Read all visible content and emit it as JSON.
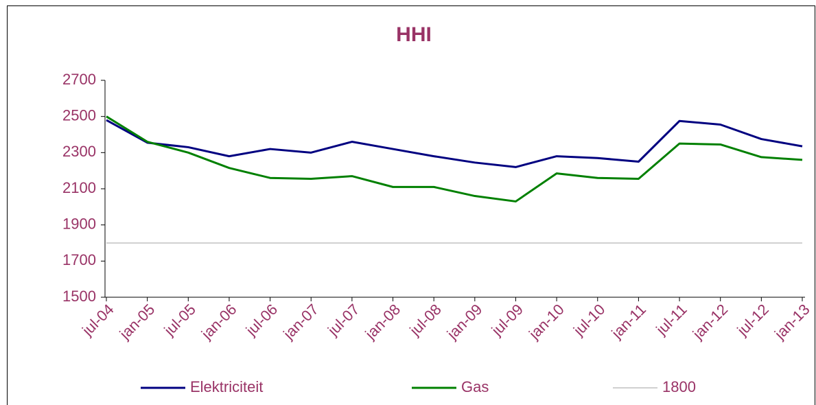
{
  "chart_data": {
    "type": "line",
    "title": "HHI",
    "categories": [
      "jul-04",
      "jan-05",
      "jul-05",
      "jan-06",
      "jul-06",
      "jan-07",
      "jul-07",
      "jan-08",
      "jul-08",
      "jan-09",
      "jul-09",
      "jan-10",
      "jul-10",
      "jan-11",
      "jul-11",
      "jan-12",
      "jul-12",
      "jan-13"
    ],
    "series": [
      {
        "name": "Elektriciteit",
        "color": "#000080",
        "values": [
          2480,
          2355,
          2330,
          2280,
          2320,
          2300,
          2360,
          2320,
          2280,
          2245,
          2220,
          2280,
          2270,
          2250,
          2475,
          2455,
          2375,
          2335
        ]
      },
      {
        "name": "Gas",
        "color": "#008000",
        "values": [
          2500,
          2360,
          2300,
          2215,
          2160,
          2155,
          2170,
          2110,
          2110,
          2060,
          2030,
          2185,
          2160,
          2155,
          2350,
          2345,
          2275,
          2260
        ]
      },
      {
        "name": "1800",
        "color": "#c0c0c0",
        "values": [
          1800,
          1800,
          1800,
          1800,
          1800,
          1800,
          1800,
          1800,
          1800,
          1800,
          1800,
          1800,
          1800,
          1800,
          1800,
          1800,
          1800,
          1800
        ]
      }
    ],
    "ylim": [
      1500,
      2700
    ],
    "yticks": [
      1500,
      1700,
      1900,
      2100,
      2300,
      2500,
      2700
    ],
    "grid": false,
    "legend": "bottom"
  }
}
